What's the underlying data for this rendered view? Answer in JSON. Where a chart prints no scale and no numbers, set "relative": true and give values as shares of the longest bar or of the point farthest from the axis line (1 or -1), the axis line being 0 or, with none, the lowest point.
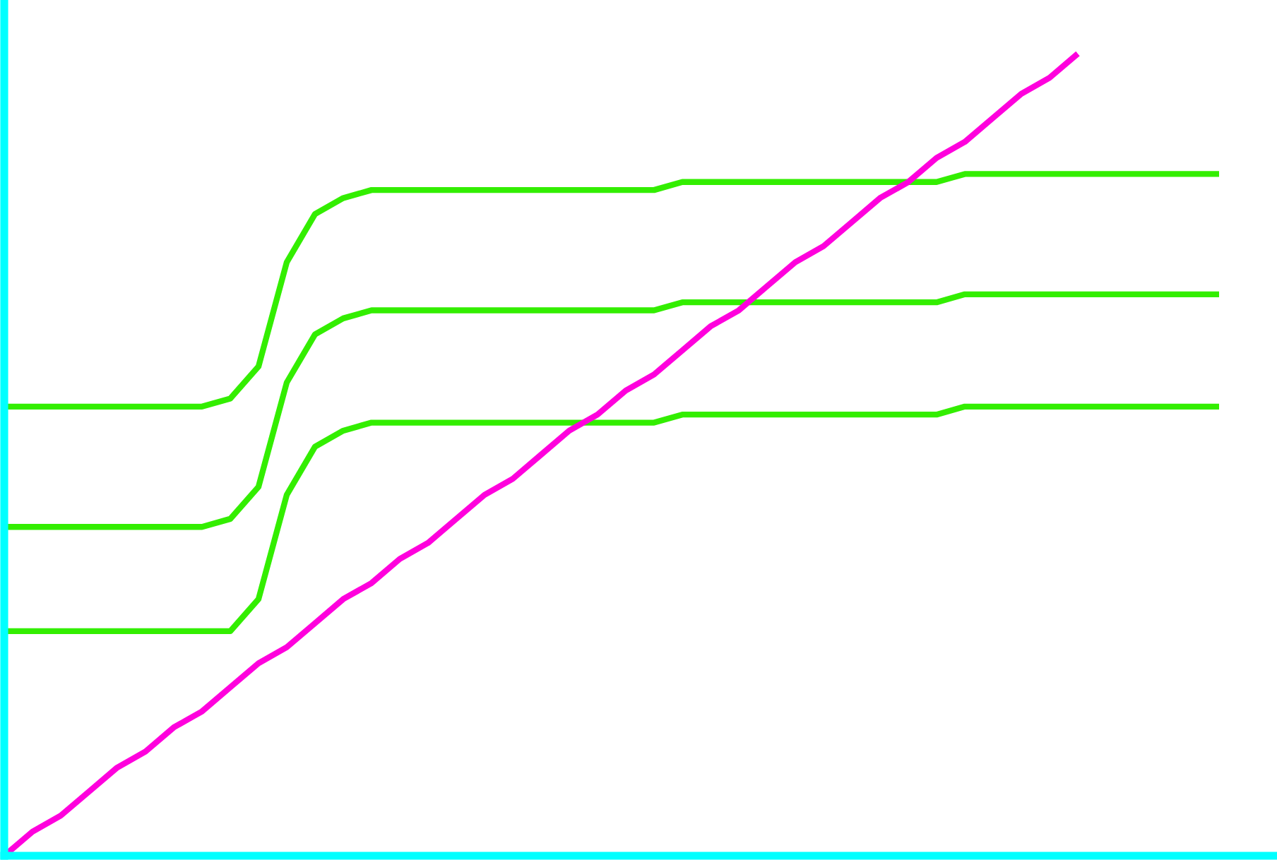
{
  "chart_data": {
    "type": "line",
    "relative": true,
    "categories": [
      null,
      null,
      null,
      null,
      null,
      null,
      null,
      null,
      null,
      null,
      null,
      null,
      null,
      null,
      null,
      null,
      null,
      null,
      null,
      null,
      null,
      null,
      null,
      null,
      null,
      null,
      null,
      null,
      null,
      null,
      null,
      null,
      null,
      null,
      null,
      null,
      null,
      null,
      null,
      null,
      null,
      null,
      null,
      null
    ],
    "series": [
      {
        "color": "#33ee00",
        "values": [
          0.56,
          0.56,
          0.56,
          0.56,
          0.56,
          0.56,
          0.56,
          0.56,
          0.57,
          0.61,
          0.74,
          0.8,
          0.82,
          0.83,
          0.83,
          0.83,
          0.83,
          0.83,
          0.83,
          0.83,
          0.83,
          0.83,
          0.83,
          0.83,
          0.84,
          0.84,
          0.84,
          0.84,
          0.84,
          0.84,
          0.84,
          0.84,
          0.84,
          0.84,
          0.85,
          0.85,
          0.85,
          0.85,
          0.85,
          0.85,
          0.85,
          0.85,
          0.85,
          0.85
        ]
      },
      {
        "color": "#33ee00",
        "values": [
          0.41,
          0.41,
          0.41,
          0.41,
          0.41,
          0.41,
          0.41,
          0.41,
          0.42,
          0.46,
          0.59,
          0.65,
          0.67,
          0.68,
          0.68,
          0.68,
          0.68,
          0.68,
          0.68,
          0.68,
          0.68,
          0.68,
          0.68,
          0.68,
          0.69,
          0.69,
          0.69,
          0.69,
          0.69,
          0.69,
          0.69,
          0.69,
          0.69,
          0.69,
          0.7,
          0.7,
          0.7,
          0.7,
          0.7,
          0.7,
          0.7,
          0.7,
          0.7,
          0.7
        ]
      },
      {
        "color": "#33ee00",
        "values": [
          0.28,
          0.28,
          0.28,
          0.28,
          0.28,
          0.28,
          0.28,
          0.28,
          0.28,
          0.32,
          0.45,
          0.51,
          0.53,
          0.54,
          0.54,
          0.54,
          0.54,
          0.54,
          0.54,
          0.54,
          0.54,
          0.54,
          0.54,
          0.54,
          0.55,
          0.55,
          0.55,
          0.55,
          0.55,
          0.55,
          0.55,
          0.55,
          0.55,
          0.55,
          0.56,
          0.56,
          0.56,
          0.56,
          0.56,
          0.56,
          0.56,
          0.56,
          0.56,
          0.56
        ]
      },
      {
        "color": "#ff00dd",
        "values": [
          0,
          0.03,
          0.05,
          0.08,
          0.11,
          0.13,
          0.16,
          0.18,
          0.21,
          0.24,
          0.26,
          0.29,
          0.32,
          0.34,
          0.37,
          0.39,
          0.42,
          0.45,
          0.47,
          0.5,
          0.53,
          0.55,
          0.58,
          0.6,
          0.63,
          0.66,
          0.68,
          0.71,
          0.74,
          0.76,
          0.79,
          0.82,
          0.84,
          0.87,
          0.89,
          0.92,
          0.95,
          0.97,
          1.0,
          null,
          null,
          null,
          null,
          null
        ]
      }
    ]
  }
}
